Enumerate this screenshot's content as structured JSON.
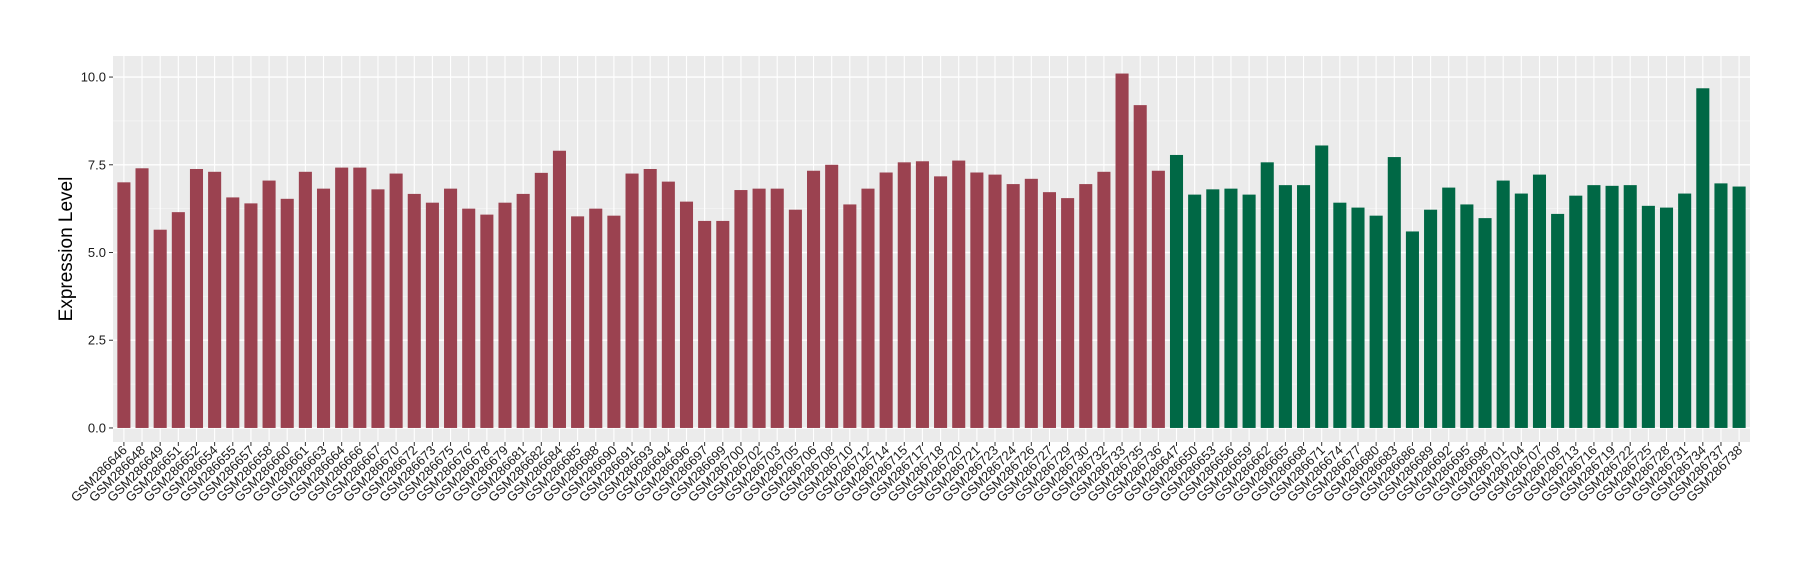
{
  "chart_data": {
    "type": "bar",
    "title": "",
    "xlabel": "",
    "ylabel": "Expression Level",
    "ylim": [
      -0.4,
      10.6
    ],
    "yticks": [
      0.0,
      2.5,
      5.0,
      7.5,
      10.0
    ],
    "ytick_labels": [
      "0.0",
      "2.5",
      "5.0",
      "7.5",
      "10.0"
    ],
    "grid": true,
    "legend": "none",
    "colors": {
      "group1": "#9b4250",
      "group2": "#006845",
      "panel_background": "#ebebeb",
      "grid_major": "#ffffff",
      "grid_minor": "#f5f5f5"
    },
    "series": [
      {
        "color": "#9b4250",
        "categories": [
          "GSM286646",
          "GSM286648",
          "GSM286649",
          "GSM286651",
          "GSM286652",
          "GSM286654",
          "GSM286655",
          "GSM286657",
          "GSM286658",
          "GSM286660",
          "GSM286661",
          "GSM286663",
          "GSM286664",
          "GSM286666",
          "GSM286667",
          "GSM286670",
          "GSM286672",
          "GSM286673",
          "GSM286675",
          "GSM286676",
          "GSM286678",
          "GSM286679",
          "GSM286681",
          "GSM286682",
          "GSM286684",
          "GSM286685",
          "GSM286688",
          "GSM286690",
          "GSM286691",
          "GSM286693",
          "GSM286694",
          "GSM286696",
          "GSM286697",
          "GSM286699",
          "GSM286700",
          "GSM286702",
          "GSM286703",
          "GSM286705",
          "GSM286706",
          "GSM286708",
          "GSM286710",
          "GSM286712",
          "GSM286714",
          "GSM286715",
          "GSM286717",
          "GSM286718",
          "GSM286720",
          "GSM286721",
          "GSM286723",
          "GSM286724",
          "GSM286726",
          "GSM286727",
          "GSM286729",
          "GSM286730",
          "GSM286732",
          "GSM286733",
          "GSM286735",
          "GSM286736"
        ],
        "values": [
          7.0,
          7.4,
          5.65,
          6.15,
          7.38,
          7.3,
          6.57,
          6.4,
          7.05,
          6.53,
          7.3,
          6.82,
          7.42,
          7.42,
          6.8,
          7.25,
          6.67,
          6.42,
          6.82,
          6.25,
          6.08,
          6.42,
          6.67,
          7.27,
          7.9,
          6.03,
          6.25,
          6.05,
          7.25,
          7.38,
          7.02,
          6.45,
          5.9,
          5.9,
          6.78,
          6.82,
          6.82,
          6.22,
          7.33,
          7.5,
          6.37,
          6.82,
          7.28,
          7.57,
          7.6,
          7.17,
          7.62,
          7.28,
          7.22,
          6.95,
          7.1,
          6.72,
          6.55,
          6.95,
          7.3,
          10.1,
          9.2,
          7.33
        ]
      },
      {
        "color": "#006845",
        "categories": [
          "GSM286647",
          "GSM286650",
          "GSM286653",
          "GSM286656",
          "GSM286659",
          "GSM286662",
          "GSM286665",
          "GSM286668",
          "GSM286671",
          "GSM286674",
          "GSM286677",
          "GSM286680",
          "GSM286683",
          "GSM286686",
          "GSM286689",
          "GSM286692",
          "GSM286695",
          "GSM286698",
          "GSM286701",
          "GSM286704",
          "GSM286707",
          "GSM286709",
          "GSM286713",
          "GSM286716",
          "GSM286719",
          "GSM286722",
          "GSM286725",
          "GSM286728",
          "GSM286731",
          "GSM286734",
          "GSM286737",
          "GSM286738"
        ],
        "values": [
          7.78,
          6.65,
          6.8,
          6.82,
          6.65,
          7.57,
          6.92,
          6.92,
          8.05,
          6.42,
          6.28,
          6.05,
          7.72,
          5.6,
          6.22,
          6.85,
          6.37,
          5.98,
          7.05,
          6.68,
          7.22,
          6.1,
          6.62,
          6.92,
          6.9,
          6.92,
          6.33,
          6.28,
          6.68,
          9.68,
          6.97,
          6.88
        ]
      }
    ]
  }
}
